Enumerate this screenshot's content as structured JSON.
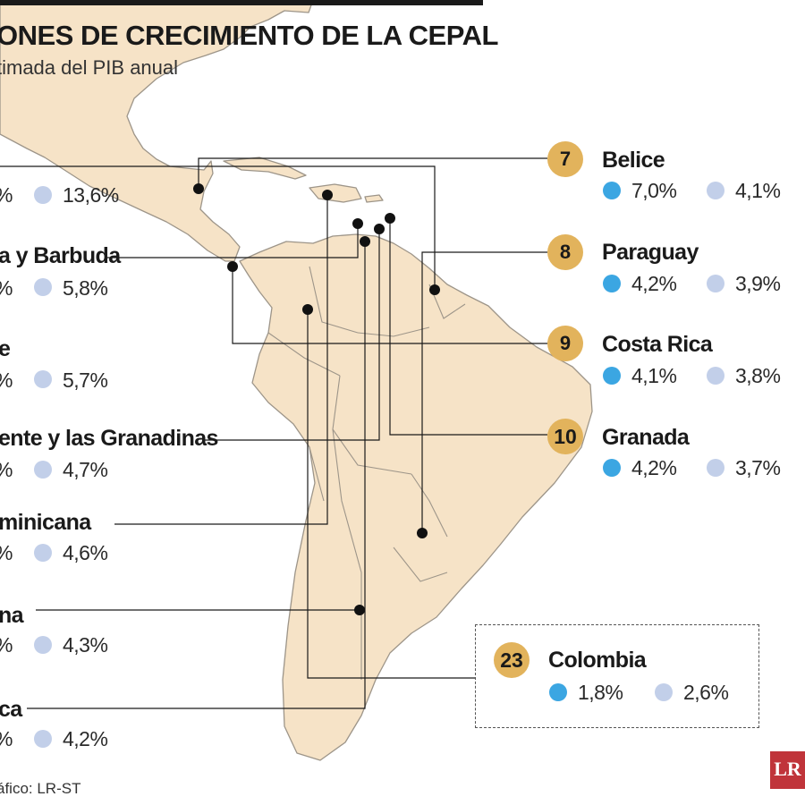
{
  "header": {
    "title": "ONES DE CRECIMIENTO DE LA CEPAL",
    "subtitle": "timada del PIB anual"
  },
  "colors": {
    "land": "#f6e3c7",
    "border": "#9d9589",
    "badge": "#e2b35c",
    "dot_blue": "#3ba6e2",
    "dot_lavender": "#c2cfe9",
    "logo": "#c0343a"
  },
  "icons": {
    "dot_blue": "blue-circle-icon",
    "dot_lavender": "lavender-circle-icon",
    "logo": "lr-logo-icon"
  },
  "left_entries": [
    {
      "name": "",
      "v1": "%",
      "v2": "13,6%"
    },
    {
      "name": "a y Barbuda",
      "v1": "%",
      "v2": "5,8%"
    },
    {
      "name": "e",
      "v1": "%",
      "v2": "5,7%"
    },
    {
      "name": "ente y las Granadinas",
      "v1": "%",
      "v2": "4,7%"
    },
    {
      "name": "minicana",
      "v1": "%",
      "v2": "4,6%"
    },
    {
      "name": "na",
      "v1": "%",
      "v2": "4,3%"
    },
    {
      "name": "ca",
      "v1": "%",
      "v2": "4,2%"
    }
  ],
  "right_entries": [
    {
      "rank": "7",
      "name": "Belice",
      "v1": "7,0%",
      "v2": "4,1%"
    },
    {
      "rank": "8",
      "name": "Paraguay",
      "v1": "4,2%",
      "v2": "3,9%"
    },
    {
      "rank": "9",
      "name": "Costa Rica",
      "v1": "4,1%",
      "v2": "3,8%"
    },
    {
      "rank": "10",
      "name": "Granada",
      "v1": "4,2%",
      "v2": "3,7%"
    }
  ],
  "highlight": {
    "rank": "23",
    "name": "Colombia",
    "v1": "1,8%",
    "v2": "2,6%"
  },
  "source": "áfico: LR-ST",
  "logo_text": "LR"
}
